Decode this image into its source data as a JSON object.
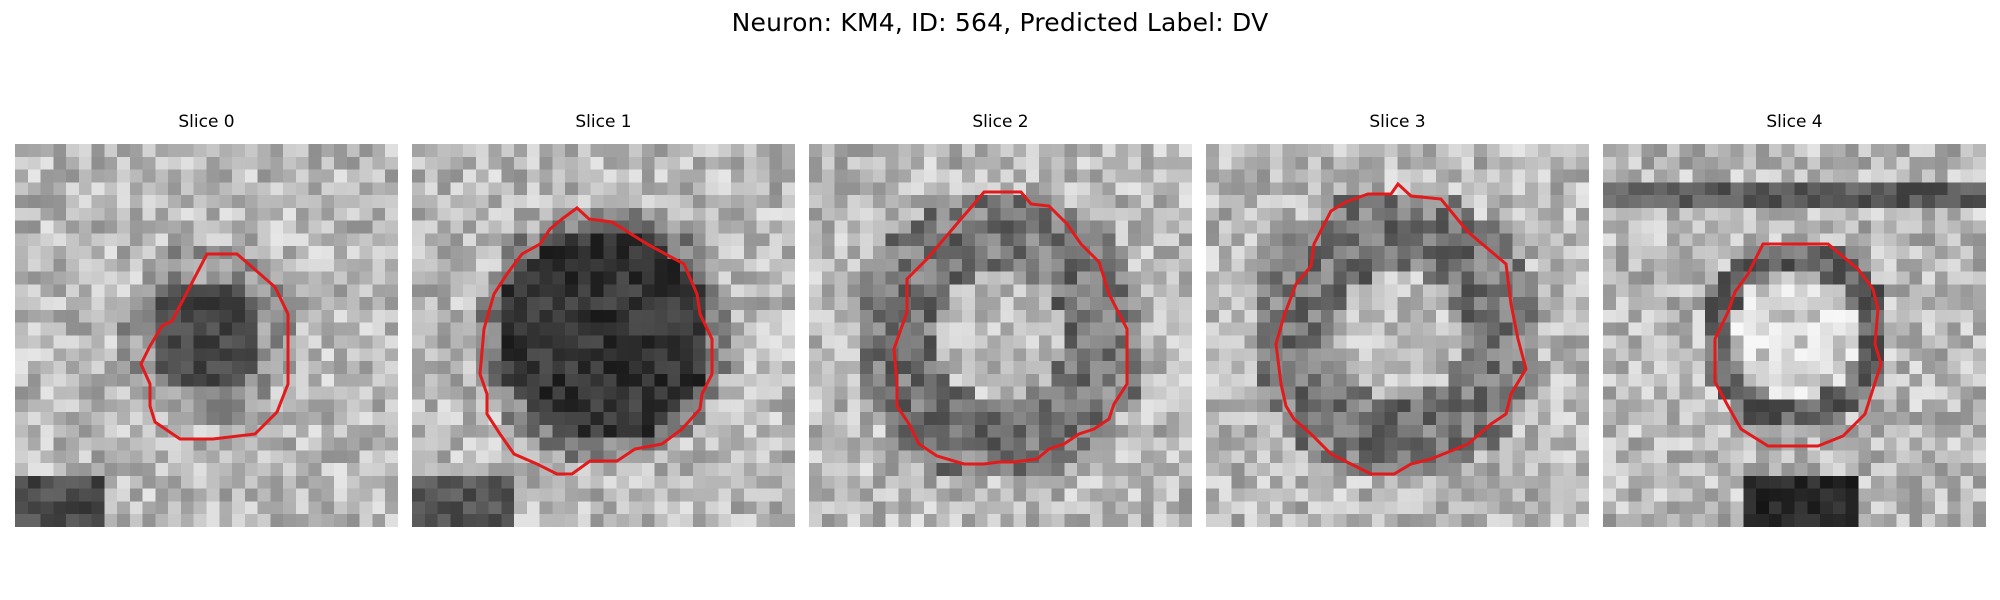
{
  "figure": {
    "suptitle": "Neuron: KM4, ID: 564, Predicted Label: DV"
  },
  "contour_color": "#e31a1c",
  "slices": [
    {
      "title": "Slice 0",
      "pattern": "dark-core-small",
      "seed": 11
    },
    {
      "title": "Slice 1",
      "pattern": "dark-core-large",
      "seed": 23
    },
    {
      "title": "Slice 2",
      "pattern": "light-core-dark-rim",
      "seed": 37
    },
    {
      "title": "Slice 3",
      "pattern": "light-core-dark-rim",
      "seed": 51
    },
    {
      "title": "Slice 4",
      "pattern": "bright-core-dark-ring",
      "seed": 67
    }
  ]
}
